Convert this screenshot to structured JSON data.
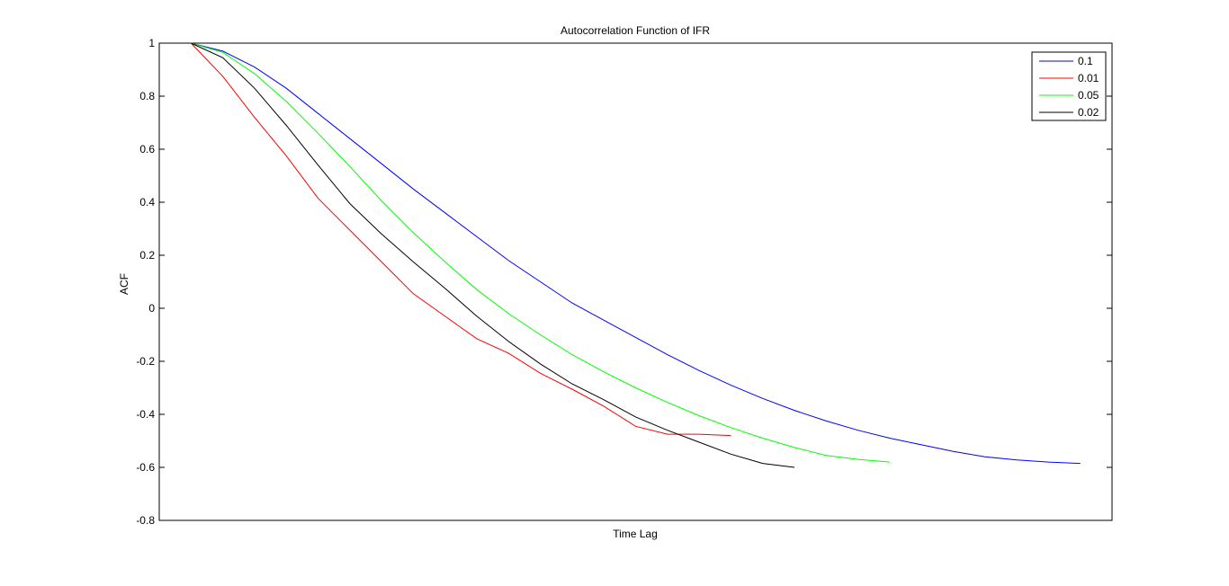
{
  "chart_data": {
    "type": "line",
    "title": "Autocorrelation Function of IFR",
    "xlabel": "Time Lag",
    "ylabel": "ACF",
    "ylim": [
      -0.8,
      1
    ],
    "xlim": [
      0,
      60
    ],
    "y_ticks": [
      "1",
      "0.8",
      "0.6",
      "0.4",
      "0.2",
      "0",
      "-0.2",
      "-0.4",
      "-0.6",
      "-0.8"
    ],
    "y_tick_values": [
      1,
      0.8,
      0.6,
      0.4,
      0.2,
      0,
      -0.2,
      -0.4,
      -0.6,
      -0.8
    ],
    "x_tick_labels_shown": false,
    "grid": false,
    "legend_position": "top-right",
    "series": [
      {
        "name": "0.1",
        "color": "#0000ff",
        "x": [
          2,
          4,
          6,
          8,
          10,
          12,
          14,
          16,
          18,
          20,
          22,
          24,
          26,
          28,
          30,
          32,
          34,
          36,
          38,
          40,
          42,
          44,
          46,
          48,
          50,
          52,
          54,
          56,
          58
        ],
        "values": [
          1,
          0.97,
          0.91,
          0.83,
          0.735,
          0.64,
          0.545,
          0.45,
          0.36,
          0.27,
          0.18,
          0.1,
          0.02,
          -0.045,
          -0.11,
          -0.175,
          -0.235,
          -0.29,
          -0.34,
          -0.385,
          -0.425,
          -0.46,
          -0.49,
          -0.515,
          -0.54,
          -0.56,
          -0.572,
          -0.58,
          -0.585
        ]
      },
      {
        "name": "0.01",
        "color": "#ff0000",
        "x": [
          2,
          4,
          6,
          8,
          10,
          12,
          14,
          16,
          18,
          20,
          22,
          24,
          26,
          28,
          30,
          32,
          34,
          36
        ],
        "values": [
          1,
          0.875,
          0.72,
          0.575,
          0.415,
          0.295,
          0.175,
          0.055,
          -0.03,
          -0.115,
          -0.17,
          -0.245,
          -0.305,
          -0.37,
          -0.445,
          -0.475,
          -0.475,
          -0.48
        ]
      },
      {
        "name": "0.05",
        "color": "#00ff00",
        "x": [
          2,
          4,
          6,
          8,
          10,
          12,
          14,
          16,
          18,
          20,
          22,
          24,
          26,
          28,
          30,
          32,
          34,
          36,
          38,
          40,
          42,
          44,
          46
        ],
        "values": [
          1,
          0.965,
          0.885,
          0.78,
          0.66,
          0.535,
          0.405,
          0.285,
          0.175,
          0.07,
          -0.02,
          -0.1,
          -0.175,
          -0.24,
          -0.3,
          -0.355,
          -0.405,
          -0.45,
          -0.49,
          -0.525,
          -0.555,
          -0.57,
          -0.58
        ]
      },
      {
        "name": "0.02",
        "color": "#000000",
        "x": [
          2,
          4,
          6,
          8,
          10,
          12,
          14,
          16,
          18,
          20,
          22,
          24,
          26,
          28,
          30,
          32,
          34,
          36,
          38,
          40
        ],
        "values": [
          1,
          0.945,
          0.83,
          0.69,
          0.54,
          0.395,
          0.28,
          0.175,
          0.075,
          -0.03,
          -0.125,
          -0.21,
          -0.285,
          -0.345,
          -0.41,
          -0.46,
          -0.505,
          -0.55,
          -0.585,
          -0.6
        ]
      }
    ]
  }
}
